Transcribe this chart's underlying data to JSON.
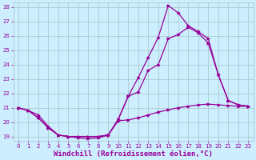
{
  "background_color": "#cceeff",
  "grid_color": "#aacccc",
  "line_color": "#990099",
  "xlabel": "Windchill (Refroidissement éolien,°C)",
  "xlabel_color": "#990099",
  "xlim": [
    -0.5,
    23.5
  ],
  "ylim": [
    18.7,
    28.3
  ],
  "yticks": [
    19,
    20,
    21,
    22,
    23,
    24,
    25,
    26,
    27,
    28
  ],
  "xticks": [
    0,
    1,
    2,
    3,
    4,
    5,
    6,
    7,
    8,
    9,
    10,
    11,
    12,
    13,
    14,
    15,
    16,
    17,
    18,
    19,
    20,
    21,
    22,
    23
  ],
  "curve1_x": [
    0,
    1,
    2,
    3,
    4,
    5,
    6,
    7,
    8,
    9,
    10,
    11,
    12,
    13,
    14,
    15,
    16,
    17,
    18,
    19,
    20,
    21,
    22,
    23
  ],
  "curve1_y": [
    21.0,
    20.8,
    20.5,
    19.7,
    19.1,
    19.0,
    18.9,
    18.85,
    18.9,
    19.1,
    20.1,
    20.15,
    20.3,
    20.5,
    20.7,
    20.85,
    21.0,
    21.1,
    21.2,
    21.25,
    21.2,
    21.15,
    21.1,
    21.1
  ],
  "curve2_x": [
    0,
    1,
    2,
    3,
    4,
    5,
    6,
    7,
    8,
    9,
    10,
    11,
    12,
    13,
    14,
    15,
    16,
    17,
    18,
    19,
    20,
    21,
    22,
    23
  ],
  "curve2_y": [
    21.0,
    20.8,
    20.3,
    19.6,
    19.1,
    19.0,
    19.0,
    19.0,
    19.0,
    19.1,
    20.2,
    21.8,
    22.1,
    23.6,
    24.0,
    25.8,
    26.1,
    26.6,
    26.2,
    25.5,
    23.3,
    21.5,
    21.2,
    21.1
  ],
  "curve3_x": [
    0,
    1,
    2,
    3,
    4,
    5,
    6,
    7,
    8,
    9,
    10,
    11,
    12,
    13,
    14,
    15,
    16,
    17,
    18,
    19,
    20,
    21,
    22,
    23
  ],
  "curve3_y": [
    21.0,
    20.8,
    20.3,
    19.6,
    19.1,
    19.0,
    19.0,
    19.0,
    19.0,
    19.1,
    20.2,
    21.8,
    23.1,
    24.5,
    25.9,
    28.1,
    27.6,
    26.7,
    26.3,
    25.8,
    23.3,
    21.5,
    21.2,
    21.1
  ],
  "tick_fontsize": 5.0,
  "xlabel_fontsize": 6.5
}
